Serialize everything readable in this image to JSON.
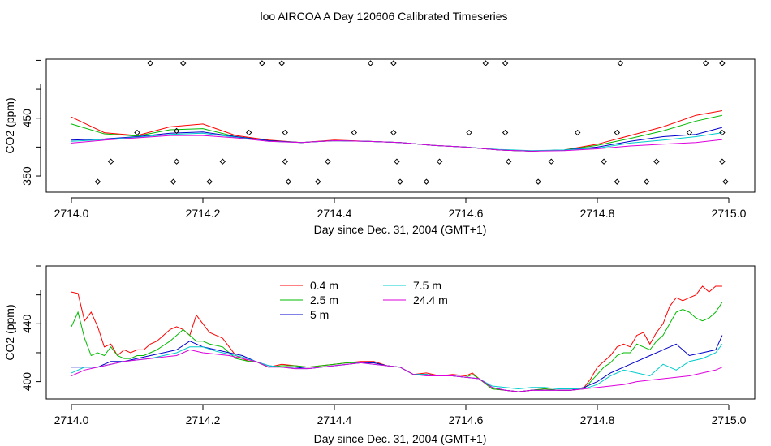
{
  "figure_title": "loo AIRCOA A  Day 120606  Calibrated Timeseries",
  "chart_data": [
    {
      "type": "line",
      "xlabel": "Day since Dec. 31, 2004 (GMT+1)",
      "ylabel": "CO2 (ppm)",
      "xlim": [
        2714.0,
        2715.0
      ],
      "ylim": [
        322,
        552
      ],
      "xticks": [
        2714.0,
        2714.2,
        2714.4,
        2714.6,
        2714.8,
        2715.0
      ],
      "xtick_labels": [
        "2714.0",
        "2714.2",
        "2714.4",
        "2714.6",
        "2714.8",
        "2715.0"
      ],
      "yticks": [
        350,
        450
      ],
      "ytick_labels": [
        "350",
        "450"
      ],
      "grid": false,
      "series": [
        {
          "name": "0.4 m",
          "color": "#ff0000",
          "x": [
            2714.0,
            2714.05,
            2714.1,
            2714.15,
            2714.2,
            2714.25,
            2714.3,
            2714.35,
            2714.4,
            2714.45,
            2714.5,
            2714.55,
            2714.6,
            2714.65,
            2714.7,
            2714.75,
            2714.8,
            2714.85,
            2714.9,
            2714.95,
            2714.99
          ],
          "y": [
            452,
            425,
            420,
            435,
            440,
            420,
            412,
            408,
            412,
            410,
            408,
            403,
            400,
            395,
            393,
            395,
            405,
            420,
            435,
            455,
            463
          ]
        },
        {
          "name": "2.5 m",
          "color": "#00bb00",
          "x": [
            2714.0,
            2714.05,
            2714.1,
            2714.15,
            2714.2,
            2714.25,
            2714.3,
            2714.35,
            2714.4,
            2714.45,
            2714.5,
            2714.55,
            2714.6,
            2714.65,
            2714.7,
            2714.75,
            2714.8,
            2714.85,
            2714.9,
            2714.95,
            2714.99
          ],
          "y": [
            440,
            423,
            419,
            430,
            432,
            418,
            411,
            408,
            411,
            410,
            408,
            403,
            400,
            395,
            393,
            395,
            403,
            415,
            428,
            445,
            455
          ]
        },
        {
          "name": "5 m",
          "color": "#0000cc",
          "x": [
            2714.0,
            2714.05,
            2714.1,
            2714.15,
            2714.2,
            2714.25,
            2714.3,
            2714.35,
            2714.4,
            2714.45,
            2714.5,
            2714.55,
            2714.6,
            2714.65,
            2714.7,
            2714.75,
            2714.8,
            2714.85,
            2714.9,
            2714.95,
            2714.99
          ],
          "y": [
            412,
            414,
            418,
            424,
            426,
            418,
            411,
            408,
            411,
            410,
            408,
            403,
            400,
            395,
            393,
            395,
            400,
            410,
            418,
            422,
            434
          ]
        },
        {
          "name": "7.5 m",
          "color": "#00cccc",
          "x": [
            2714.0,
            2714.05,
            2714.1,
            2714.15,
            2714.2,
            2714.25,
            2714.3,
            2714.35,
            2714.4,
            2714.45,
            2714.5,
            2714.55,
            2714.6,
            2714.65,
            2714.7,
            2714.75,
            2714.8,
            2714.85,
            2714.9,
            2714.95,
            2714.99
          ],
          "y": [
            410,
            413,
            417,
            422,
            424,
            417,
            410,
            408,
            411,
            410,
            408,
            403,
            400,
            396,
            394,
            395,
            398,
            407,
            412,
            418,
            425
          ]
        },
        {
          "name": "24.4 m",
          "color": "#dd00dd",
          "x": [
            2714.0,
            2714.05,
            2714.1,
            2714.15,
            2714.2,
            2714.25,
            2714.3,
            2714.35,
            2714.4,
            2714.45,
            2714.5,
            2714.55,
            2714.6,
            2714.65,
            2714.7,
            2714.75,
            2714.8,
            2714.85,
            2714.9,
            2714.95,
            2714.99
          ],
          "y": [
            407,
            412,
            416,
            420,
            420,
            416,
            410,
            408,
            411,
            410,
            408,
            403,
            400,
            395,
            393,
            394,
            397,
            402,
            405,
            408,
            413
          ]
        }
      ],
      "markers": {
        "symbol": "open-diamond",
        "x": [
          2714.04,
          2714.06,
          2714.1,
          2714.12,
          2714.155,
          2714.16,
          2714.16,
          2714.17,
          2714.21,
          2714.23,
          2714.27,
          2714.29,
          2714.32,
          2714.325,
          2714.325,
          2714.33,
          2714.375,
          2714.39,
          2714.43,
          2714.455,
          2714.49,
          2714.49,
          2714.495,
          2714.5,
          2714.54,
          2714.56,
          2714.605,
          2714.63,
          2714.66,
          2714.66,
          2714.665,
          2714.71,
          2714.73,
          2714.77,
          2714.81,
          2714.83,
          2714.83,
          2714.835,
          2714.875,
          2714.89,
          2714.94,
          2714.965,
          2714.99,
          2714.99,
          2714.99,
          2714.995
        ],
        "y": [
          340,
          375,
          425,
          545,
          340,
          375,
          428,
          545,
          340,
          375,
          425,
          545,
          545,
          425,
          375,
          340,
          340,
          375,
          425,
          545,
          545,
          425,
          375,
          340,
          340,
          375,
          425,
          545,
          545,
          425,
          375,
          340,
          375,
          425,
          375,
          340,
          425,
          545,
          340,
          375,
          425,
          545,
          545,
          425,
          375,
          340
        ]
      }
    },
    {
      "type": "line",
      "xlabel": "Day since Dec. 31, 2004 (GMT+1)",
      "ylabel": "CO2 (ppm)",
      "xlim": [
        2714.0,
        2715.0
      ],
      "ylim": [
        388,
        480
      ],
      "xticks": [
        2714.0,
        2714.2,
        2714.4,
        2714.6,
        2714.8,
        2715.0
      ],
      "xtick_labels": [
        "2714.0",
        "2714.2",
        "2714.4",
        "2714.6",
        "2714.8",
        "2715.0"
      ],
      "yticks": [
        400,
        440
      ],
      "ytick_labels": [
        "400",
        "440"
      ],
      "grid": false,
      "legend_position": "top-center",
      "series": [
        {
          "name": "0.4 m",
          "color": "#ff0000",
          "x": [
            2714.0,
            2714.01,
            2714.02,
            2714.03,
            2714.04,
            2714.05,
            2714.06,
            2714.07,
            2714.08,
            2714.09,
            2714.1,
            2714.11,
            2714.12,
            2714.13,
            2714.14,
            2714.15,
            2714.16,
            2714.17,
            2714.18,
            2714.19,
            2714.2,
            2714.21,
            2714.22,
            2714.23,
            2714.24,
            2714.25,
            2714.26,
            2714.27,
            2714.28,
            2714.3,
            2714.32,
            2714.34,
            2714.36,
            2714.38,
            2714.4,
            2714.42,
            2714.44,
            2714.46,
            2714.48,
            2714.5,
            2714.52,
            2714.54,
            2714.56,
            2714.58,
            2714.6,
            2714.61,
            2714.62,
            2714.64,
            2714.66,
            2714.68,
            2714.7,
            2714.72,
            2714.74,
            2714.76,
            2714.78,
            2714.79,
            2714.8,
            2714.81,
            2714.82,
            2714.83,
            2714.84,
            2714.85,
            2714.86,
            2714.87,
            2714.88,
            2714.89,
            2714.9,
            2714.91,
            2714.92,
            2714.93,
            2714.94,
            2714.95,
            2714.96,
            2714.97,
            2714.98,
            2714.99
          ],
          "y": [
            462,
            461,
            442,
            448,
            438,
            424,
            426,
            418,
            422,
            420,
            422,
            422,
            426,
            428,
            432,
            436,
            438,
            436,
            432,
            446,
            440,
            434,
            432,
            430,
            424,
            418,
            416,
            414,
            414,
            410,
            412,
            411,
            410,
            411,
            412,
            413,
            414,
            414,
            411,
            410,
            405,
            406,
            404,
            405,
            404,
            406,
            402,
            395,
            394,
            393,
            394,
            395,
            394,
            394,
            396,
            402,
            410,
            414,
            418,
            424,
            426,
            424,
            432,
            434,
            426,
            434,
            440,
            452,
            458,
            456,
            458,
            460,
            466,
            462,
            466,
            466
          ]
        },
        {
          "name": "2.5 m",
          "color": "#00bb00",
          "x": [
            2714.0,
            2714.01,
            2714.02,
            2714.03,
            2714.04,
            2714.05,
            2714.06,
            2714.07,
            2714.08,
            2714.09,
            2714.1,
            2714.11,
            2714.12,
            2714.13,
            2714.14,
            2714.15,
            2714.16,
            2714.17,
            2714.18,
            2714.19,
            2714.2,
            2714.21,
            2714.22,
            2714.23,
            2714.24,
            2714.25,
            2714.26,
            2714.27,
            2714.28,
            2714.3,
            2714.32,
            2714.34,
            2714.36,
            2714.38,
            2714.4,
            2714.42,
            2714.44,
            2714.46,
            2714.48,
            2714.5,
            2714.52,
            2714.54,
            2714.56,
            2714.58,
            2714.6,
            2714.61,
            2714.62,
            2714.64,
            2714.66,
            2714.68,
            2714.7,
            2714.72,
            2714.74,
            2714.76,
            2714.78,
            2714.79,
            2714.8,
            2714.81,
            2714.82,
            2714.83,
            2714.84,
            2714.85,
            2714.86,
            2714.87,
            2714.88,
            2714.89,
            2714.9,
            2714.91,
            2714.92,
            2714.93,
            2714.94,
            2714.95,
            2714.96,
            2714.97,
            2714.98,
            2714.99
          ],
          "y": [
            438,
            448,
            430,
            418,
            420,
            418,
            424,
            418,
            416,
            416,
            418,
            418,
            420,
            422,
            425,
            428,
            432,
            436,
            432,
            428,
            428,
            426,
            425,
            424,
            420,
            416,
            415,
            414,
            414,
            410,
            411,
            411,
            410,
            411,
            412,
            413,
            413,
            413,
            411,
            410,
            405,
            405,
            404,
            404,
            403,
            405,
            402,
            395,
            394,
            393,
            394,
            395,
            394,
            394,
            395,
            400,
            405,
            410,
            413,
            418,
            420,
            420,
            426,
            424,
            422,
            428,
            432,
            440,
            448,
            450,
            448,
            444,
            442,
            444,
            448,
            455
          ]
        },
        {
          "name": "5 m",
          "color": "#0000cc",
          "x": [
            2714.0,
            2714.02,
            2714.04,
            2714.06,
            2714.08,
            2714.1,
            2714.12,
            2714.14,
            2714.16,
            2714.18,
            2714.2,
            2714.22,
            2714.24,
            2714.26,
            2714.28,
            2714.3,
            2714.32,
            2714.34,
            2714.36,
            2714.38,
            2714.4,
            2714.42,
            2714.44,
            2714.46,
            2714.48,
            2714.5,
            2714.52,
            2714.54,
            2714.56,
            2714.58,
            2714.6,
            2714.62,
            2714.64,
            2714.66,
            2714.68,
            2714.7,
            2714.72,
            2714.74,
            2714.76,
            2714.78,
            2714.8,
            2714.82,
            2714.84,
            2714.86,
            2714.88,
            2714.9,
            2714.92,
            2714.94,
            2714.96,
            2714.98,
            2714.99
          ],
          "y": [
            410,
            410,
            410,
            414,
            414,
            416,
            418,
            420,
            422,
            428,
            424,
            422,
            420,
            418,
            414,
            411,
            410,
            410,
            409,
            410,
            411,
            412,
            413,
            413,
            411,
            410,
            405,
            405,
            404,
            404,
            403,
            402,
            396,
            394,
            393,
            394,
            394,
            394,
            394,
            396,
            400,
            406,
            410,
            414,
            418,
            422,
            426,
            418,
            420,
            422,
            432
          ]
        },
        {
          "name": "7.5 m",
          "color": "#00cccc",
          "x": [
            2714.0,
            2714.02,
            2714.04,
            2714.06,
            2714.08,
            2714.1,
            2714.12,
            2714.14,
            2714.16,
            2714.18,
            2714.2,
            2714.22,
            2714.24,
            2714.26,
            2714.28,
            2714.3,
            2714.32,
            2714.34,
            2714.36,
            2714.38,
            2714.4,
            2714.42,
            2714.44,
            2714.46,
            2714.48,
            2714.5,
            2714.52,
            2714.54,
            2714.56,
            2714.58,
            2714.6,
            2714.62,
            2714.64,
            2714.66,
            2714.68,
            2714.7,
            2714.72,
            2714.74,
            2714.76,
            2714.78,
            2714.8,
            2714.82,
            2714.84,
            2714.86,
            2714.88,
            2714.9,
            2714.92,
            2714.94,
            2714.96,
            2714.98,
            2714.99
          ],
          "y": [
            406,
            410,
            410,
            412,
            414,
            415,
            416,
            418,
            420,
            424,
            424,
            421,
            419,
            417,
            414,
            411,
            410,
            409,
            409,
            410,
            411,
            412,
            413,
            412,
            411,
            410,
            405,
            405,
            404,
            404,
            403,
            402,
            397,
            396,
            395,
            396,
            396,
            395,
            395,
            395,
            398,
            404,
            408,
            406,
            404,
            412,
            408,
            414,
            416,
            420,
            426
          ]
        },
        {
          "name": "24.4 m",
          "color": "#dd00dd",
          "x": [
            2714.0,
            2714.02,
            2714.04,
            2714.06,
            2714.08,
            2714.1,
            2714.12,
            2714.14,
            2714.16,
            2714.18,
            2714.2,
            2714.22,
            2714.24,
            2714.26,
            2714.28,
            2714.3,
            2714.32,
            2714.34,
            2714.36,
            2714.38,
            2714.4,
            2714.42,
            2714.44,
            2714.46,
            2714.48,
            2714.5,
            2714.52,
            2714.54,
            2714.56,
            2714.58,
            2714.6,
            2714.62,
            2714.64,
            2714.66,
            2714.68,
            2714.7,
            2714.72,
            2714.74,
            2714.76,
            2714.78,
            2714.8,
            2714.82,
            2714.84,
            2714.86,
            2714.88,
            2714.9,
            2714.92,
            2714.94,
            2714.96,
            2714.98,
            2714.99
          ],
          "y": [
            404,
            408,
            410,
            412,
            414,
            415,
            416,
            417,
            418,
            422,
            420,
            419,
            418,
            416,
            414,
            410,
            410,
            409,
            409,
            410,
            411,
            412,
            413,
            412,
            411,
            410,
            405,
            404,
            404,
            404,
            403,
            402,
            396,
            394,
            393,
            394,
            394,
            394,
            394,
            395,
            396,
            397,
            398,
            400,
            401,
            402,
            403,
            404,
            406,
            408,
            410
          ]
        }
      ]
    }
  ]
}
